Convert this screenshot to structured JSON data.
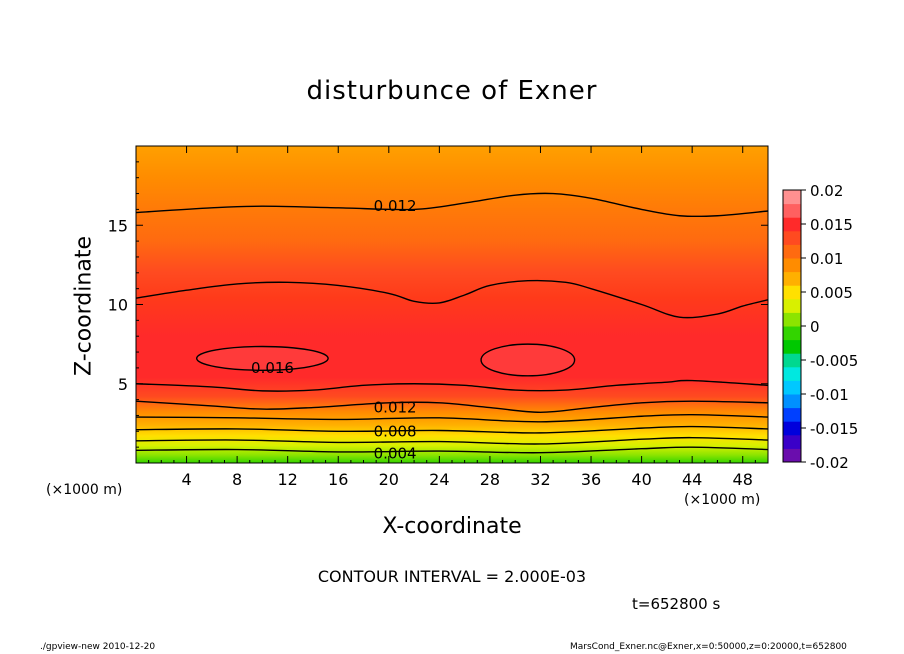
{
  "title": "disturbunce of Exner",
  "xlabel": "X-coordinate",
  "ylabel": "Z-coordinate",
  "x_unit_left": "(×1000 m)",
  "x_unit_right": "(×1000 m)",
  "contour_interval": "CONTOUR INTERVAL = 2.000E-03",
  "time_label": "t=652800 s",
  "footer_left": "./gpview-new   2010-12-20",
  "footer_right": "MarsCond_Exner.nc@Exner,x=0:50000,z=0:20000,t=652800",
  "chart_data": {
    "type": "contour",
    "title": "disturbunce of Exner",
    "xlabel": "X-coordinate",
    "ylabel": "Z-coordinate",
    "xlim": [
      0,
      50
    ],
    "ylim": [
      0,
      20
    ],
    "x_ticks": [
      4,
      8,
      12,
      16,
      20,
      24,
      28,
      32,
      36,
      40,
      44,
      48
    ],
    "y_ticks": [
      5,
      10,
      15
    ],
    "contour_interval": 0.002,
    "colorbar": {
      "min": -0.02,
      "max": 0.02,
      "ticks": [
        "0.02",
        "0.015",
        "0.01",
        "0.005",
        "0",
        "-0.005",
        "-0.01",
        "-0.015",
        "-0.02"
      ],
      "colors": [
        "#6a0dad",
        "#3a00c8",
        "#0000dc",
        "#0040ff",
        "#0090ff",
        "#00c8ff",
        "#00e8e0",
        "#00d890",
        "#00c800",
        "#33d400",
        "#8ce400",
        "#d8f000",
        "#ffe000",
        "#ffb000",
        "#ff8c00",
        "#ff6a10",
        "#ff4a20",
        "#ff2a2a",
        "#ff6060",
        "#ff9090"
      ]
    },
    "contour_labels": [
      {
        "text": "0.012",
        "x": 20.5,
        "z": 16.2
      },
      {
        "text": "0.016",
        "x": 10.8,
        "z": 6.0
      },
      {
        "text": "0.012",
        "x": 20.5,
        "z": 3.5
      },
      {
        "text": "0.008",
        "x": 20.5,
        "z": 2.0
      },
      {
        "text": "0.004",
        "x": 20.5,
        "z": 0.6
      }
    ],
    "contours": [
      {
        "level": 0.004,
        "points": [
          [
            0,
            0.8
          ],
          [
            8,
            0.85
          ],
          [
            16,
            0.7
          ],
          [
            24,
            0.75
          ],
          [
            32,
            0.65
          ],
          [
            40,
            0.9
          ],
          [
            44,
            1.0
          ],
          [
            50,
            0.85
          ]
        ]
      },
      {
        "level": 0.006,
        "points": [
          [
            0,
            1.4
          ],
          [
            8,
            1.45
          ],
          [
            16,
            1.3
          ],
          [
            24,
            1.35
          ],
          [
            32,
            1.2
          ],
          [
            40,
            1.5
          ],
          [
            44,
            1.6
          ],
          [
            50,
            1.45
          ]
        ]
      },
      {
        "level": 0.008,
        "points": [
          [
            0,
            2.1
          ],
          [
            8,
            2.15
          ],
          [
            16,
            2.0
          ],
          [
            24,
            2.05
          ],
          [
            32,
            1.9
          ],
          [
            40,
            2.2
          ],
          [
            44,
            2.3
          ],
          [
            50,
            2.15
          ]
        ]
      },
      {
        "level": 0.01,
        "points": [
          [
            0,
            2.9
          ],
          [
            8,
            2.85
          ],
          [
            16,
            2.75
          ],
          [
            24,
            2.85
          ],
          [
            32,
            2.6
          ],
          [
            40,
            2.95
          ],
          [
            44,
            3.05
          ],
          [
            50,
            2.9
          ]
        ]
      },
      {
        "level": 0.012,
        "points": [
          [
            0,
            3.9
          ],
          [
            6,
            3.6
          ],
          [
            10,
            3.4
          ],
          [
            14,
            3.5
          ],
          [
            20,
            3.8
          ],
          [
            24,
            3.8
          ],
          [
            28,
            3.5
          ],
          [
            32,
            3.2
          ],
          [
            36,
            3.5
          ],
          [
            40,
            3.8
          ],
          [
            44,
            3.9
          ],
          [
            50,
            3.8
          ]
        ]
      },
      {
        "level": 0.014,
        "points": [
          [
            0,
            5.0
          ],
          [
            6,
            4.8
          ],
          [
            10,
            4.55
          ],
          [
            14,
            4.6
          ],
          [
            18,
            4.9
          ],
          [
            22,
            5.0
          ],
          [
            26,
            4.9
          ],
          [
            30,
            4.6
          ],
          [
            34,
            4.6
          ],
          [
            38,
            4.9
          ],
          [
            42,
            5.1
          ],
          [
            44,
            5.2
          ],
          [
            50,
            4.9
          ]
        ]
      },
      {
        "level": 0.014,
        "points": [
          [
            0,
            10.4
          ],
          [
            4,
            10.9
          ],
          [
            8,
            11.3
          ],
          [
            12,
            11.4
          ],
          [
            16,
            11.2
          ],
          [
            20,
            10.7
          ],
          [
            22,
            10.2
          ],
          [
            24,
            10.1
          ],
          [
            26,
            10.6
          ],
          [
            28,
            11.2
          ],
          [
            31,
            11.5
          ],
          [
            34,
            11.4
          ],
          [
            36,
            11.0
          ],
          [
            40,
            10.0
          ],
          [
            43,
            9.2
          ],
          [
            46,
            9.4
          ],
          [
            48,
            9.9
          ],
          [
            50,
            10.3
          ]
        ]
      },
      {
        "level": 0.012,
        "points": [
          [
            0,
            15.8
          ],
          [
            6,
            16.1
          ],
          [
            10,
            16.2
          ],
          [
            16,
            16.1
          ],
          [
            22,
            16.0
          ],
          [
            26,
            16.4
          ],
          [
            30,
            16.9
          ],
          [
            33,
            17.0
          ],
          [
            36,
            16.7
          ],
          [
            40,
            16.0
          ],
          [
            43,
            15.6
          ],
          [
            46,
            15.6
          ],
          [
            50,
            15.9
          ]
        ]
      }
    ],
    "closed_contours": [
      {
        "level": 0.016,
        "cx": 10.0,
        "cz": 6.6,
        "rx": 5.2,
        "rz": 0.75
      },
      {
        "level": 0.016,
        "cx": 31.0,
        "cz": 6.5,
        "rx": 3.7,
        "rz": 1.0
      }
    ]
  }
}
